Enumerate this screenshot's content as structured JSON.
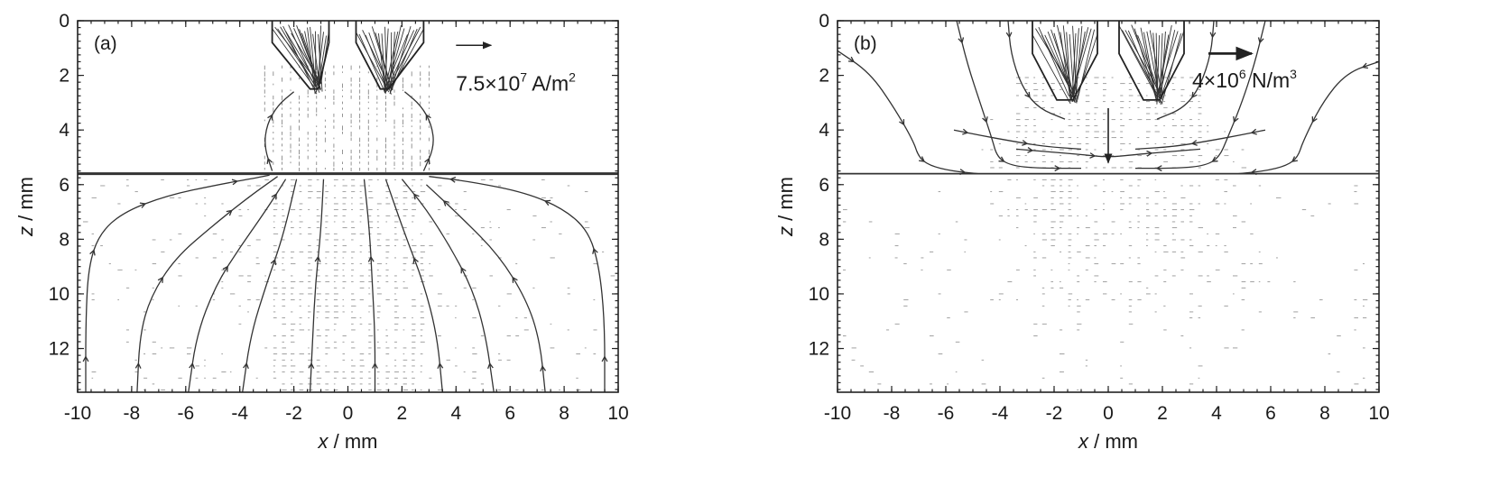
{
  "chart_data": [
    {
      "type": "vector-field",
      "panel_label": "(a)",
      "xlabel_var": "x",
      "xlabel_unit": " / mm",
      "ylabel_var": "z",
      "ylabel_unit": " / mm",
      "xlim": [
        -10,
        10
      ],
      "ylim": [
        0,
        13.6
      ],
      "y_inverted": true,
      "xticks": [
        -10,
        -8,
        -6,
        -4,
        -2,
        0,
        2,
        4,
        6,
        8,
        10
      ],
      "xtick_labels": [
        "-10",
        "-8",
        "-6",
        "-4",
        "-2",
        "0",
        "2",
        "4",
        "6",
        "8",
        "10"
      ],
      "yticks": [
        0,
        2,
        4,
        6,
        8,
        10,
        12
      ],
      "ytick_labels": [
        "0",
        "2",
        "4",
        "6",
        "8",
        "10",
        "12"
      ],
      "interface_z": 5.6,
      "electrode": {
        "left": [
          [
            -2.8,
            0
          ],
          [
            -2.8,
            0.8
          ],
          [
            -1.4,
            2.5
          ],
          [
            -1.1,
            2.5
          ],
          [
            -0.7,
            0.8
          ],
          [
            -0.7,
            0
          ]
        ],
        "right": [
          [
            0.3,
            0
          ],
          [
            0.3,
            0.8
          ],
          [
            1.2,
            2.5
          ],
          [
            1.5,
            2.5
          ],
          [
            2.8,
            0.8
          ],
          [
            2.8,
            0
          ]
        ]
      },
      "annotation": {
        "base": "7.5×10",
        "exp": "7",
        "unit": " A/m",
        "unit_exp": "2"
      },
      "reference_vector": {
        "x": 4.0,
        "z": 0.9,
        "dx": 1.3
      },
      "streamlines": [
        {
          "x": [
            -9.7,
            -9.7,
            -9.6,
            -9.2,
            -8.3,
            -6.7,
            -4.8,
            -3.4,
            -2.9
          ],
          "z": [
            13.6,
            11.0,
            9.0,
            7.8,
            7.0,
            6.4,
            6.0,
            5.75,
            5.65
          ]
        },
        {
          "x": [
            -7.8,
            -7.7,
            -7.3,
            -6.4,
            -5.0,
            -3.6,
            -2.6
          ],
          "z": [
            13.6,
            11.5,
            10.1,
            8.7,
            7.5,
            6.4,
            5.7
          ]
        },
        {
          "x": [
            -5.9,
            -5.6,
            -4.9,
            -4.0,
            -3.0,
            -2.3
          ],
          "z": [
            13.6,
            11.5,
            9.7,
            8.3,
            6.9,
            5.8
          ]
        },
        {
          "x": [
            -3.9,
            -3.6,
            -3.0,
            -2.4,
            -1.9
          ],
          "z": [
            13.6,
            11.5,
            9.6,
            7.9,
            5.8
          ]
        },
        {
          "x": [
            -1.4,
            -1.3,
            -1.2,
            -1.0,
            -0.9
          ],
          "z": [
            13.6,
            11.5,
            9.6,
            7.7,
            5.8
          ]
        },
        {
          "x": [
            1.0,
            1.0,
            0.9,
            0.8,
            0.6
          ],
          "z": [
            13.6,
            11.5,
            9.6,
            7.7,
            5.8
          ]
        },
        {
          "x": [
            3.5,
            3.3,
            2.8,
            2.1,
            1.4
          ],
          "z": [
            13.6,
            11.5,
            9.6,
            7.8,
            5.8
          ]
        },
        {
          "x": [
            5.4,
            5.1,
            4.6,
            3.8,
            2.9,
            2.0
          ],
          "z": [
            13.6,
            11.5,
            9.8,
            8.3,
            6.9,
            5.8
          ]
        },
        {
          "x": [
            7.3,
            7.1,
            6.6,
            5.6,
            4.2,
            2.9
          ],
          "z": [
            13.6,
            11.7,
            10.2,
            8.6,
            7.2,
            6.0
          ]
        },
        {
          "x": [
            9.5,
            9.5,
            9.3,
            8.9,
            8.0,
            6.6,
            4.6,
            3.0
          ],
          "z": [
            13.6,
            11.0,
            9.0,
            7.7,
            6.9,
            6.3,
            5.9,
            5.7
          ]
        },
        {
          "x": [
            -2.8,
            -3.1,
            -3.0,
            -2.6,
            -2.0
          ],
          "z": [
            5.5,
            4.6,
            3.8,
            3.1,
            2.6
          ]
        },
        {
          "x": [
            2.8,
            3.2,
            3.1,
            2.7,
            2.1
          ],
          "z": [
            5.5,
            4.6,
            3.8,
            3.1,
            2.6
          ]
        }
      ]
    },
    {
      "type": "vector-field",
      "panel_label": "(b)",
      "xlabel_var": "x",
      "xlabel_unit": " / mm",
      "ylabel_var": "z",
      "ylabel_unit": " / mm",
      "xlim": [
        -10,
        10
      ],
      "ylim": [
        0,
        13.6
      ],
      "y_inverted": true,
      "xticks": [
        -10,
        -8,
        -6,
        -4,
        -2,
        0,
        2,
        4,
        6,
        8,
        10
      ],
      "xtick_labels": [
        "-10",
        "-8",
        "-6",
        "-4",
        "-2",
        "0",
        "2",
        "4",
        "6",
        "8",
        "10"
      ],
      "yticks": [
        0,
        2,
        4,
        6,
        8,
        10,
        12
      ],
      "ytick_labels": [
        "0",
        "2",
        "4",
        "6",
        "8",
        "10",
        "12"
      ],
      "interface_z": 5.6,
      "electrode": {
        "left": [
          [
            -2.8,
            0
          ],
          [
            -2.8,
            1.2
          ],
          [
            -1.9,
            2.9
          ],
          [
            -1.3,
            2.9
          ],
          [
            -0.4,
            1.2
          ],
          [
            -0.4,
            0
          ]
        ],
        "right": [
          [
            0.4,
            0
          ],
          [
            0.4,
            1.2
          ],
          [
            1.3,
            2.9
          ],
          [
            1.9,
            2.9
          ],
          [
            2.8,
            1.2
          ],
          [
            2.8,
            0
          ]
        ]
      },
      "annotation": {
        "base": "4×10",
        "exp": "6",
        "unit": " N/m",
        "unit_exp": "3"
      },
      "reference_vector": {
        "x": 3.7,
        "z": 1.2,
        "dx": 1.6
      },
      "streamlines": [
        {
          "x": [
            -10,
            -8.8,
            -7.9,
            -7.2,
            -7.0,
            -6.6,
            -5.8,
            -4.8
          ],
          "z": [
            1.1,
            1.9,
            3.2,
            4.4,
            5.0,
            5.3,
            5.5,
            5.6
          ]
        },
        {
          "x": [
            -5.6,
            -5.2,
            -4.7,
            -4.3,
            -4.1,
            -3.6,
            -2.6,
            -1.0
          ],
          "z": [
            0.0,
            1.6,
            3.1,
            4.3,
            5.0,
            5.3,
            5.4,
            5.4
          ]
        },
        {
          "x": [
            -3.7,
            -3.6,
            -3.2,
            -2.6,
            -1.6
          ],
          "z": [
            0.0,
            1.2,
            2.4,
            3.2,
            3.6
          ]
        },
        {
          "x": [
            -5.7,
            -4.7,
            -3.6,
            -2.4,
            -1.0
          ],
          "z": [
            4.0,
            4.2,
            4.4,
            4.6,
            4.7
          ]
        },
        {
          "x": [
            10,
            8.8,
            7.9,
            7.2,
            7.0,
            6.6,
            5.8,
            4.8
          ],
          "z": [
            1.5,
            1.9,
            3.0,
            4.4,
            5.0,
            5.3,
            5.5,
            5.6
          ]
        },
        {
          "x": [
            5.8,
            5.4,
            4.9,
            4.4,
            4.1,
            3.6,
            2.6,
            1.0
          ],
          "z": [
            0.0,
            1.6,
            3.1,
            4.3,
            5.0,
            5.3,
            5.4,
            5.4
          ]
        },
        {
          "x": [
            3.9,
            3.8,
            3.4,
            2.8,
            1.8
          ],
          "z": [
            0.0,
            1.2,
            2.4,
            3.2,
            3.6
          ]
        },
        {
          "x": [
            5.8,
            4.8,
            3.7,
            2.5,
            1.0
          ],
          "z": [
            4.0,
            4.2,
            4.4,
            4.6,
            4.7
          ]
        },
        {
          "x": [
            -3.4,
            -2.2,
            -1.0,
            0.0,
            1.0,
            2.2,
            3.4
          ],
          "z": [
            4.7,
            4.8,
            4.9,
            5.0,
            4.9,
            4.8,
            4.7
          ]
        }
      ]
    }
  ]
}
